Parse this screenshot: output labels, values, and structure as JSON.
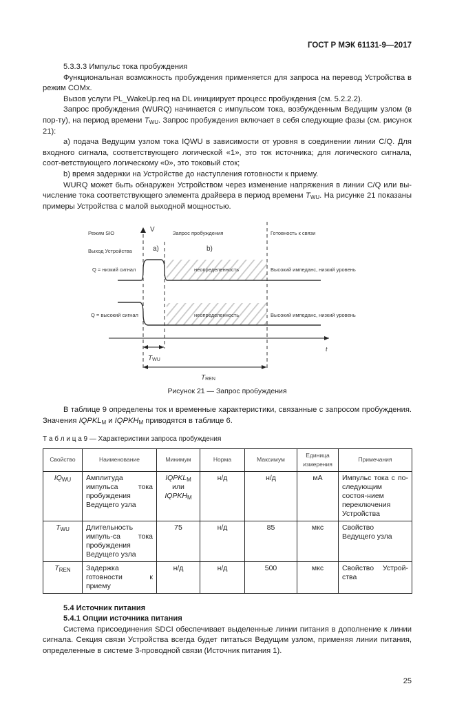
{
  "header": "ГОСТ Р МЭК 61131-9—2017",
  "section_533": {
    "title": "5.3.3.3 Импульс тока пробуждения",
    "p1": "Функциональная возможность пробуждения применяется для запроса на перевод Устройства в режим COMx.",
    "p2": "Вызов услуги PL_WakeUp.req на DL инициирует процесс пробуждения (см. 5.2.2.2).",
    "p3a": "Запрос пробуждения (WURQ) начинается с импульсом тока, возбужденным Ведущим узлом (в пор-ту), на период времени ",
    "p3_sym": "T",
    "p3_sub": "WU",
    "p3b": ". Запрос пробуждения включает в себя следующие фазы (см. рисунок 21):",
    "p4": "a) подача Ведущим узлом тока IQWU в зависимости от уровня в соединении линии C/Q. Для входного сигнала, соответствующего логической «1», это ток источника; для логического сигнала, соот-ветствующего логическому «0», это токовый сток;",
    "p5": "b) время задержки на Устройстве до наступления готовности к приему.",
    "p6a": "WURQ может быть обнаружен Устройством через изменение напряжения в линии C/Q или вы-числение тока соответствующего элемента драйвера в период времени ",
    "p6_sym": "T",
    "p6_sub": "WU",
    "p6b": ". На рисунке 21 показаны примеры Устройства с малой выходной мощностью."
  },
  "figure": {
    "mode_label": "Режим SIO",
    "axis_v": "V",
    "wake_label": "Запрос пробуждения",
    "ready_label": "Готовность к связи",
    "output_label": "Выход Устройства",
    "phase_a": "a)",
    "phase_b": "b)",
    "q_low": "Q = низкий сигнал",
    "q_high": "Q = высокий сигнал",
    "undefined": "неопределенность",
    "high_imp": "Высокий импеданс, низкий уровень",
    "axis_t": "t",
    "twu_sym": "T",
    "twu_sub": "WU",
    "tren_sym": "T",
    "tren_sub": "REN",
    "caption": "Рисунок 21 — Запрос пробуждения"
  },
  "para_table_intro": {
    "a": "В таблице 9 определены ток и временные характеристики, связанные с запросом пробуждения. Значения ",
    "s1": "IQPKL",
    "s1sub": "M",
    "mid": " и ",
    "s2": "IQPKH",
    "s2sub": "M",
    "b": " приводятся в таблице 6."
  },
  "table": {
    "title": "Т а б л и ц а  9 — Характеристики запроса пробуждения",
    "headers": [
      "Свойство",
      "Наименование",
      "Минимум",
      "Норма",
      "Максимум",
      "Единица измерения",
      "Примечания"
    ],
    "rows": [
      {
        "prop": "IQ",
        "prop_sub": "WU",
        "name": "Амплитуда импульса тока пробуждения Ведущего узла",
        "min_a": "IQPKL",
        "min_a_sub": "M",
        "min_or": "или",
        "min_b": "IQPKH",
        "min_b_sub": "M",
        "norm": "н/д",
        "max": "н/д",
        "unit": "мА",
        "note": "Импульс тока с по-следующим состоя-нием переключения Устройства"
      },
      {
        "prop": "T",
        "prop_sub": "WU",
        "name": "Длительность импуль-са тока пробуждения Ведущего узла",
        "min": "75",
        "norm": "н/д",
        "max": "85",
        "unit": "мкс",
        "note": "Свойство Ведущего узла"
      },
      {
        "prop": "T",
        "prop_sub": "REN",
        "name": "Задержка готовности к приему",
        "min": "н/д",
        "norm": "н/д",
        "max": "500",
        "unit": "мкс",
        "note": "Свойство Устрой-ства"
      }
    ]
  },
  "section_54": {
    "title": "5.4 Источник питания",
    "sub_title": "5.4.1 Опции источника питания",
    "p1": "Система присоединения SDCI обеспечивает выделенные линии питания в дополнение к линии сигнала. Секция связи Устройства всегда будет питаться Ведущим узлом, применяя линии питания, определенные в системе 3-проводной связи (Источник питания 1)."
  },
  "page_number": "25"
}
